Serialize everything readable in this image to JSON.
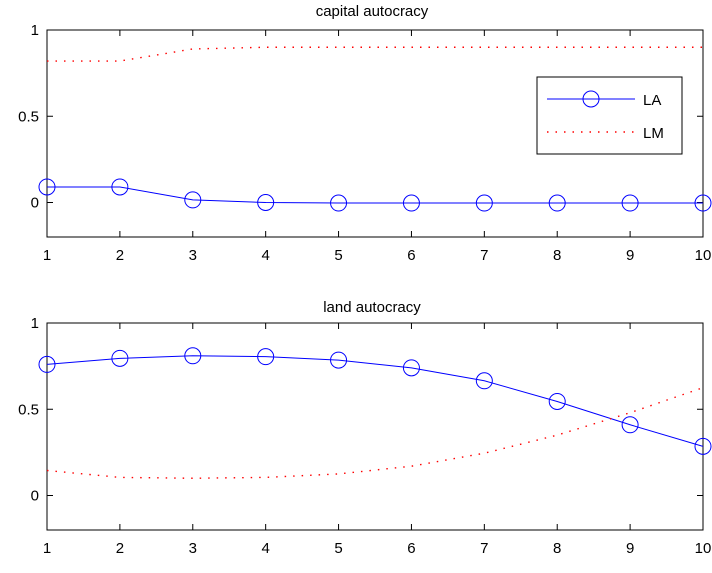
{
  "chart_data": [
    {
      "type": "line",
      "title": "capital autocracy",
      "xlabel": "",
      "ylabel": "",
      "xlim": [
        1,
        10
      ],
      "ylim": [
        -0.2,
        1
      ],
      "xticks": [
        "1",
        "2",
        "3",
        "4",
        "5",
        "6",
        "7",
        "8",
        "9",
        "10"
      ],
      "yticks": [
        "0",
        "0.5",
        "1"
      ],
      "ytick_values": [
        0,
        0.5,
        1
      ],
      "grid": false,
      "legend": {
        "placement": "right",
        "entries": [
          "LA",
          "LM"
        ]
      },
      "x": [
        1,
        2,
        3,
        4,
        5,
        6,
        7,
        8,
        9,
        10
      ],
      "series": [
        {
          "name": "LA",
          "style": "solid-circle",
          "color": "#0000ff",
          "values": [
            0.09,
            0.09,
            0.015,
            0.0,
            -0.003,
            -0.003,
            -0.003,
            -0.003,
            -0.003,
            -0.003
          ]
        },
        {
          "name": "LM",
          "style": "dotted",
          "color": "#ff0000",
          "values": [
            0.82,
            0.82,
            0.89,
            0.9,
            0.9,
            0.9,
            0.9,
            0.9,
            0.9,
            0.9
          ]
        }
      ]
    },
    {
      "type": "line",
      "title": "land autocracy",
      "xlabel": "",
      "ylabel": "",
      "xlim": [
        1,
        10
      ],
      "ylim": [
        -0.2,
        1
      ],
      "xticks": [
        "1",
        "2",
        "3",
        "4",
        "5",
        "6",
        "7",
        "8",
        "9",
        "10"
      ],
      "yticks": [
        "0",
        "0.5",
        "1"
      ],
      "ytick_values": [
        0,
        0.5,
        1
      ],
      "grid": false,
      "x": [
        1,
        2,
        3,
        4,
        5,
        6,
        7,
        8,
        9,
        10
      ],
      "series": [
        {
          "name": "LA",
          "style": "solid-circle",
          "color": "#0000ff",
          "values": [
            0.76,
            0.795,
            0.81,
            0.805,
            0.785,
            0.74,
            0.665,
            0.545,
            0.41,
            0.285
          ]
        },
        {
          "name": "LM",
          "style": "dotted",
          "color": "#ff0000",
          "values": [
            0.145,
            0.105,
            0.1,
            0.105,
            0.125,
            0.17,
            0.245,
            0.35,
            0.48,
            0.625
          ]
        }
      ]
    }
  ]
}
